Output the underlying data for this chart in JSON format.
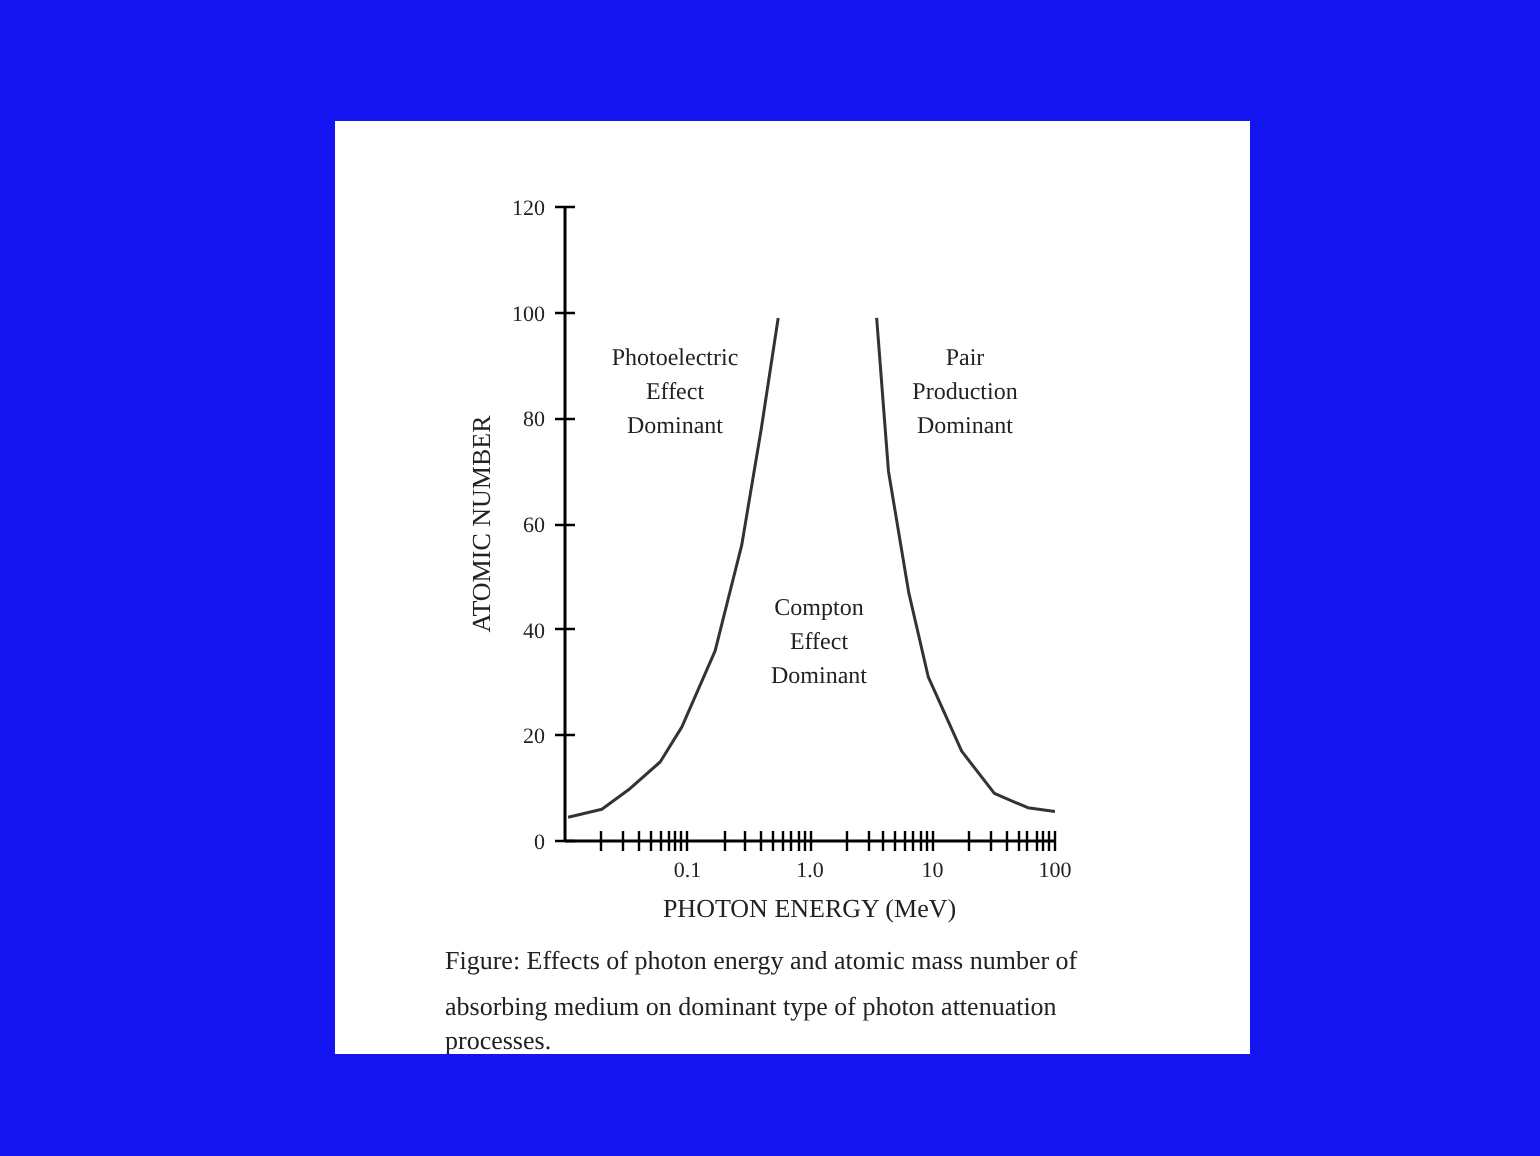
{
  "chart_data": {
    "type": "line",
    "xlabel": "PHOTON ENERGY (MeV)",
    "ylabel": "ATOMIC NUMBER",
    "log": "x",
    "grid": false,
    "xlim": [
      0.01,
      100
    ],
    "ylim": [
      0,
      120
    ],
    "xticks": [
      {
        "value": 0.02,
        "label": null
      },
      {
        "value": 0.03,
        "label": null
      },
      {
        "value": 0.04,
        "label": null
      },
      {
        "value": 0.05,
        "label": null
      },
      {
        "value": 0.06,
        "label": null
      },
      {
        "value": 0.07,
        "label": null
      },
      {
        "value": 0.08,
        "label": null
      },
      {
        "value": 0.09,
        "label": null
      },
      0.1,
      {
        "value": 0.2,
        "label": null
      },
      {
        "value": 0.3,
        "label": null
      },
      {
        "value": 0.4,
        "label": null
      },
      {
        "value": 0.5,
        "label": null
      },
      {
        "value": 0.6,
        "label": null
      },
      {
        "value": 0.7,
        "label": null
      },
      {
        "value": 0.8,
        "label": null
      },
      {
        "value": 0.9,
        "label": null
      },
      {
        "value": 1,
        "label": "1.0"
      },
      {
        "value": 2,
        "label": null
      },
      {
        "value": 3,
        "label": null
      },
      {
        "value": 4,
        "label": null
      },
      {
        "value": 5,
        "label": null
      },
      {
        "value": 6,
        "label": null
      },
      {
        "value": 7,
        "label": null
      },
      {
        "value": 8,
        "label": null
      },
      {
        "value": 9,
        "label": null
      },
      10,
      {
        "value": 20,
        "label": null
      },
      {
        "value": 30,
        "label": null
      },
      {
        "value": 40,
        "label": null
      },
      {
        "value": 50,
        "label": null
      },
      {
        "value": 60,
        "label": null
      },
      {
        "value": 70,
        "label": null
      },
      {
        "value": 80,
        "label": null
      },
      {
        "value": 90,
        "label": null
      },
      100
    ],
    "yticks": [
      0,
      20,
      40,
      60,
      80,
      100,
      120
    ],
    "series": [
      {
        "color": "#333333",
        "x": [
          0.0106,
          0.02,
          0.033,
          0.06,
          0.09,
          0.168,
          0.277,
          0.4,
          0.55
        ],
        "values": [
          4.5,
          6,
          9.7,
          15,
          21.6,
          36,
          56,
          78,
          99
        ]
      },
      {
        "color": "#333333",
        "x": [
          3.5,
          4.37,
          6.4,
          9.25,
          17.3,
          32,
          60,
          100
        ],
        "values": [
          99,
          70,
          47,
          31,
          17,
          9,
          6.3,
          5.6
        ]
      }
    ],
    "annotations": [
      "Photoelectric\nEffect\nDominant",
      "Compton\nEffect\nDominant",
      "Pair\nProduction\nDominant",
      "Figure: Effects of photon energy and atomic mass number of absorbing medium on dominant type of photon attenuation processes."
    ]
  }
}
